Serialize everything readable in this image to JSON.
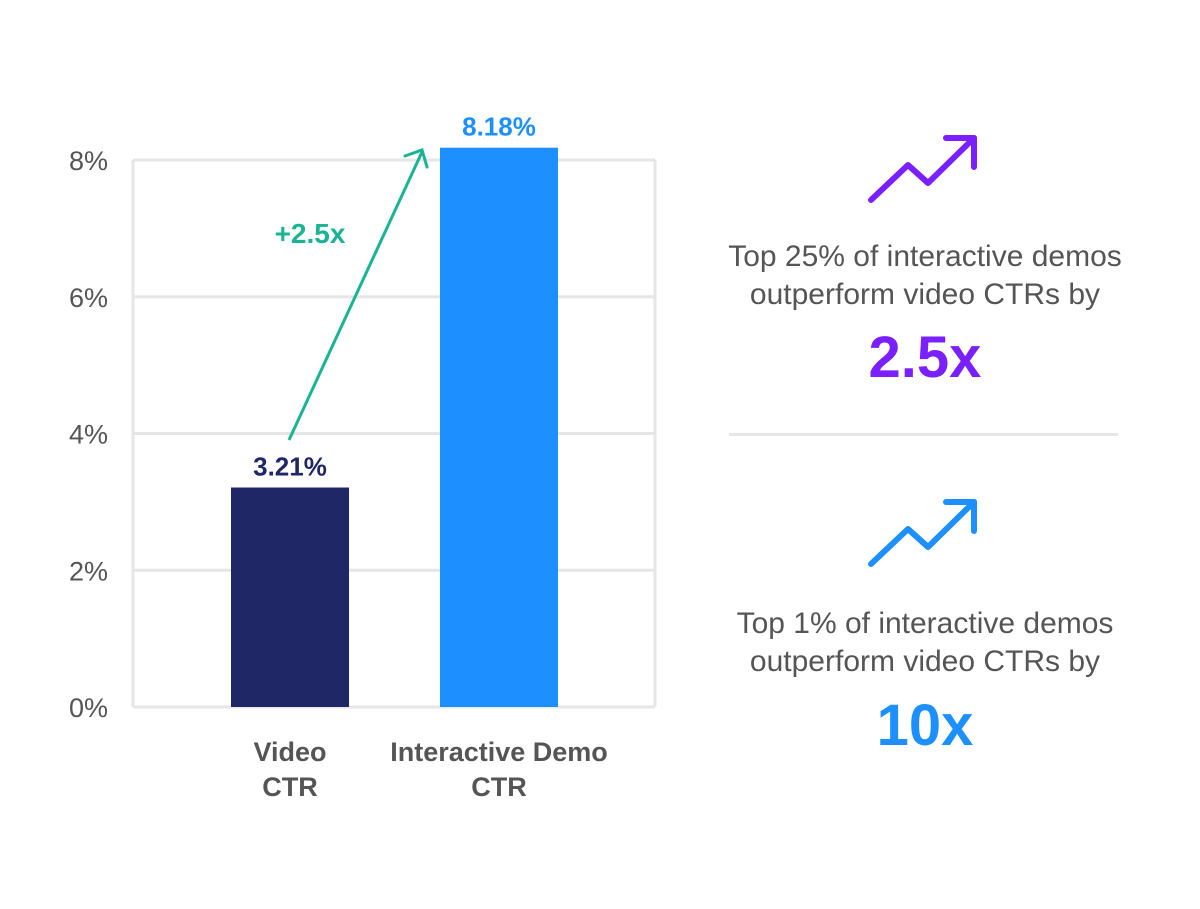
{
  "chart_data": {
    "type": "bar",
    "categories": [
      [
        "Video",
        "CTR"
      ],
      [
        "Interactive Demo",
        "CTR"
      ]
    ],
    "values": [
      3.21,
      8.18
    ],
    "data_labels": [
      "3.21%",
      "8.18%"
    ],
    "bar_colors": [
      "#1f2766",
      "#1e8fff"
    ],
    "ylim": [
      0,
      8
    ],
    "yticks": [
      0,
      2,
      4,
      6,
      8
    ],
    "ytick_labels": [
      "0%",
      "2%",
      "4%",
      "6%",
      "8%"
    ],
    "grid": true,
    "annotation": {
      "text": "+2.5x",
      "color": "#1ab394"
    }
  },
  "stats": [
    {
      "icon": "trending-up-icon",
      "color": "#7a1fff",
      "text": [
        "Top 25% of interactive demos",
        "outperform video CTRs by"
      ],
      "value": "2.5x"
    },
    {
      "icon": "trending-up-icon",
      "color": "#1e8fff",
      "text": [
        "Top 1% of interactive demos",
        "outperform video CTRs by"
      ],
      "value": "10x"
    }
  ]
}
